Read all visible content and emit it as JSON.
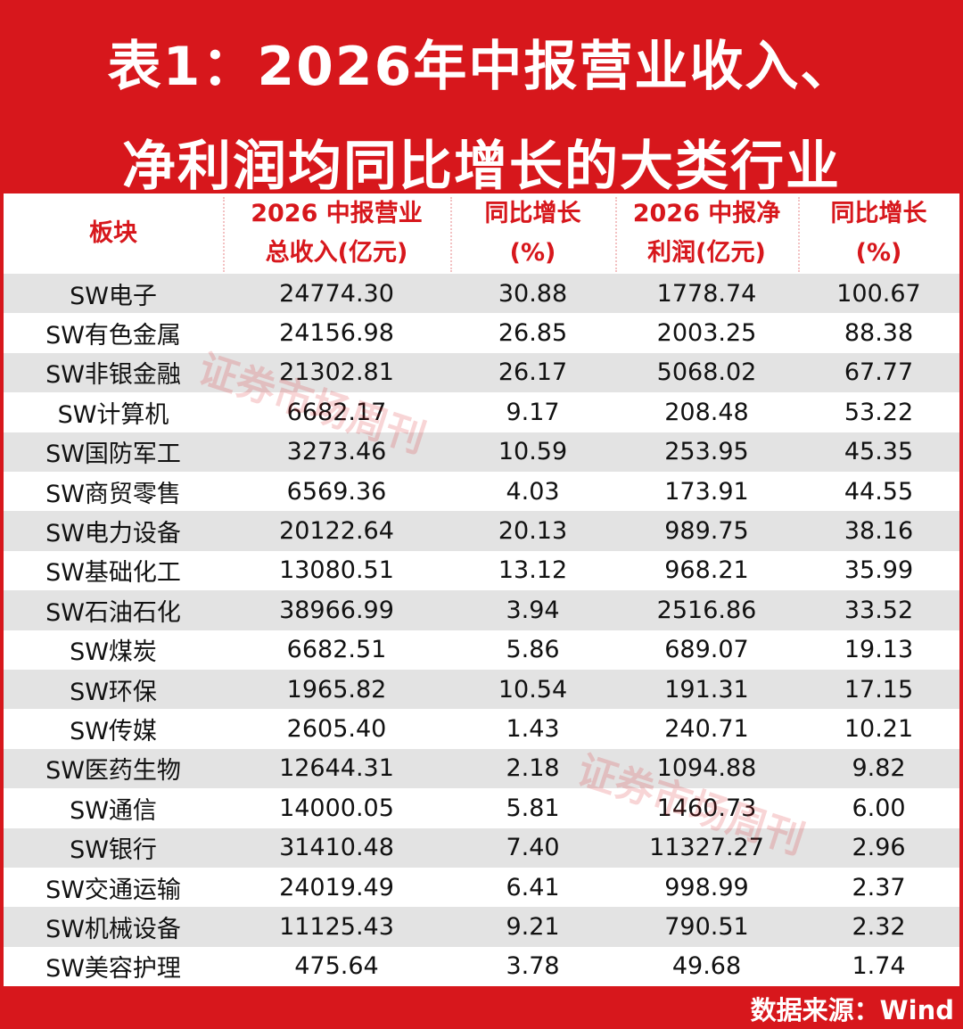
{
  "header": {
    "title_lines": [
      "表1：2026年中报营业收入、",
      "净利润均同比增长的大类行业"
    ]
  },
  "table": {
    "columns": [
      [
        "板块"
      ],
      [
        "2026 中报营业",
        "总收入(亿元)"
      ],
      [
        "同比增长",
        "(%)"
      ],
      [
        "2026 中报净",
        "利润(亿元)"
      ],
      [
        "同比增长",
        "(%)"
      ]
    ],
    "rows": [
      [
        "SW电子",
        "24774.30",
        "30.88",
        "1778.74",
        "100.67"
      ],
      [
        "SW有色金属",
        "24156.98",
        "26.85",
        "2003.25",
        "88.38"
      ],
      [
        "SW非银金融",
        "21302.81",
        "26.17",
        "5068.02",
        "67.77"
      ],
      [
        "SW计算机",
        "6682.17",
        "9.17",
        "208.48",
        "53.22"
      ],
      [
        "SW国防军工",
        "3273.46",
        "10.59",
        "253.95",
        "45.35"
      ],
      [
        "SW商贸零售",
        "6569.36",
        "4.03",
        "173.91",
        "44.55"
      ],
      [
        "SW电力设备",
        "20122.64",
        "20.13",
        "989.75",
        "38.16"
      ],
      [
        "SW基础化工",
        "13080.51",
        "13.12",
        "968.21",
        "35.99"
      ],
      [
        "SW石油石化",
        "38966.99",
        "3.94",
        "2516.86",
        "33.52"
      ],
      [
        "SW煤炭",
        "6682.51",
        "5.86",
        "689.07",
        "19.13"
      ],
      [
        "SW环保",
        "1965.82",
        "10.54",
        "191.31",
        "17.15"
      ],
      [
        "SW传媒",
        "2605.40",
        "1.43",
        "240.71",
        "10.21"
      ],
      [
        "SW医药生物",
        "12644.31",
        "2.18",
        "1094.88",
        "9.82"
      ],
      [
        "SW通信",
        "14000.05",
        "5.81",
        "1460.73",
        "6.00"
      ],
      [
        "SW银行",
        "31410.48",
        "7.40",
        "11327.27",
        "2.96"
      ],
      [
        "SW交通运输",
        "24019.49",
        "6.41",
        "998.99",
        "2.37"
      ],
      [
        "SW机械设备",
        "11125.43",
        "9.21",
        "790.51",
        "2.32"
      ],
      [
        "SW美容护理",
        "475.64",
        "3.78",
        "49.68",
        "1.74"
      ]
    ]
  },
  "watermarks": [
    "证券市场周刊",
    "证券市场周刊"
  ],
  "footer": {
    "source": "数据来源：Wind"
  }
}
